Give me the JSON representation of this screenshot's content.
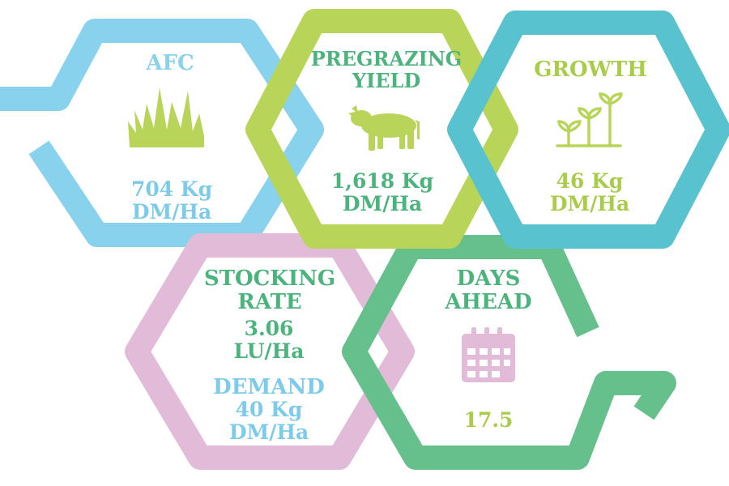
{
  "colors": {
    "light_blue": "#88d2ee",
    "lime": "#b8d55a",
    "teal": "#58c2cf",
    "pink": "#e2bbd8",
    "green": "#66c08c",
    "text_green": "#4bb37c",
    "text_lime": "#a9cd4a",
    "text_blue": "#7ccbea"
  },
  "tiles": {
    "afc": {
      "title": "AFC",
      "icon": "grass-icon",
      "value_line1": "704 Kg",
      "value_line2": "DM/Ha"
    },
    "pregrazing": {
      "title_line1": "PREGRAZING",
      "title_line2": "YIELD",
      "icon": "cow-icon",
      "value_line1": "1,618 Kg",
      "value_line2": "DM/Ha"
    },
    "growth": {
      "title": "GROWTH",
      "icon": "sprouts-icon",
      "value_line1": "46 Kg",
      "value_line2": "DM/Ha"
    },
    "stocking": {
      "title_line1": "STOCKING",
      "title_line2": "RATE",
      "value_line1": "3.06",
      "value_line2": "LU/Ha"
    },
    "demand": {
      "title": "DEMAND",
      "value_line1": "40 Kg",
      "value_line2": "DM/Ha"
    },
    "days_ahead": {
      "title_line1": "DAYS",
      "title_line2": "AHEAD",
      "icon": "calendar-icon",
      "value": "17.5"
    }
  }
}
